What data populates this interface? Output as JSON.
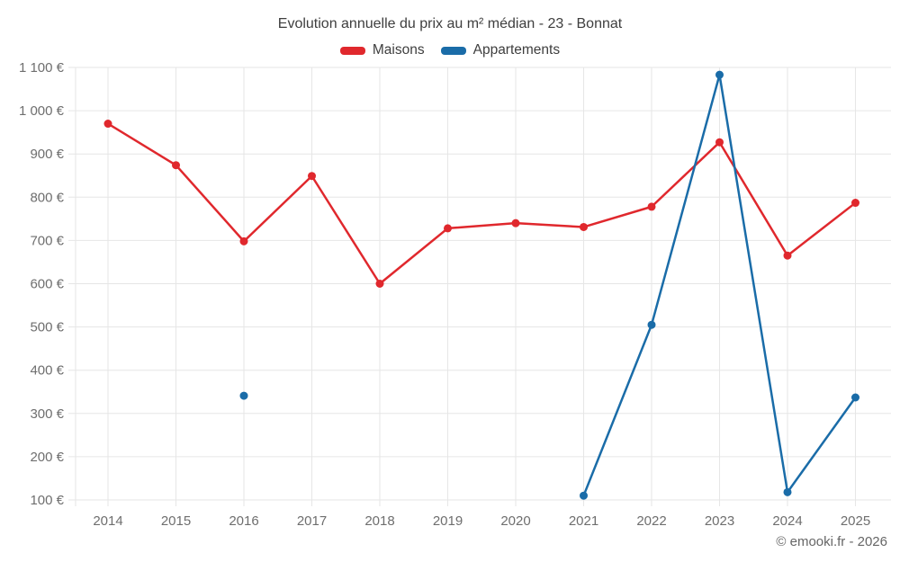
{
  "chart": {
    "title": "Evolution annuelle du prix au m² médian - 23 - Bonnat",
    "footer_copyright": "© emooki.fr - 2026"
  },
  "chart_data": {
    "type": "line",
    "title": "Evolution annuelle du prix au m² médian - 23 - Bonnat",
    "categories": [
      "2014",
      "2015",
      "2016",
      "2017",
      "2018",
      "2019",
      "2020",
      "2021",
      "2022",
      "2023",
      "2024",
      "2025"
    ],
    "series": [
      {
        "name": "Maisons",
        "color": "#e0282d",
        "values": [
          970,
          874,
          698,
          849,
          600,
          728,
          740,
          731,
          778,
          927,
          665,
          787
        ]
      },
      {
        "name": "Appartements",
        "color": "#1a6ca8",
        "values": [
          null,
          null,
          341,
          null,
          null,
          null,
          null,
          110,
          505,
          1083,
          118,
          337
        ]
      }
    ],
    "ylim": [
      100,
      1100
    ],
    "ytick_step": 100,
    "yticklabels": [
      "100 €",
      "200 €",
      "300 €",
      "400 €",
      "500 €",
      "600 €",
      "700 €",
      "800 €",
      "900 €",
      "1 000 €",
      "1 100 €"
    ],
    "xlabel": "",
    "ylabel": "",
    "grid": true,
    "legend_position": "top",
    "gridline_color": "#e6e6e6",
    "axis_text_color": "#6e6e6e",
    "title_text_color": "#3e3e3e"
  }
}
